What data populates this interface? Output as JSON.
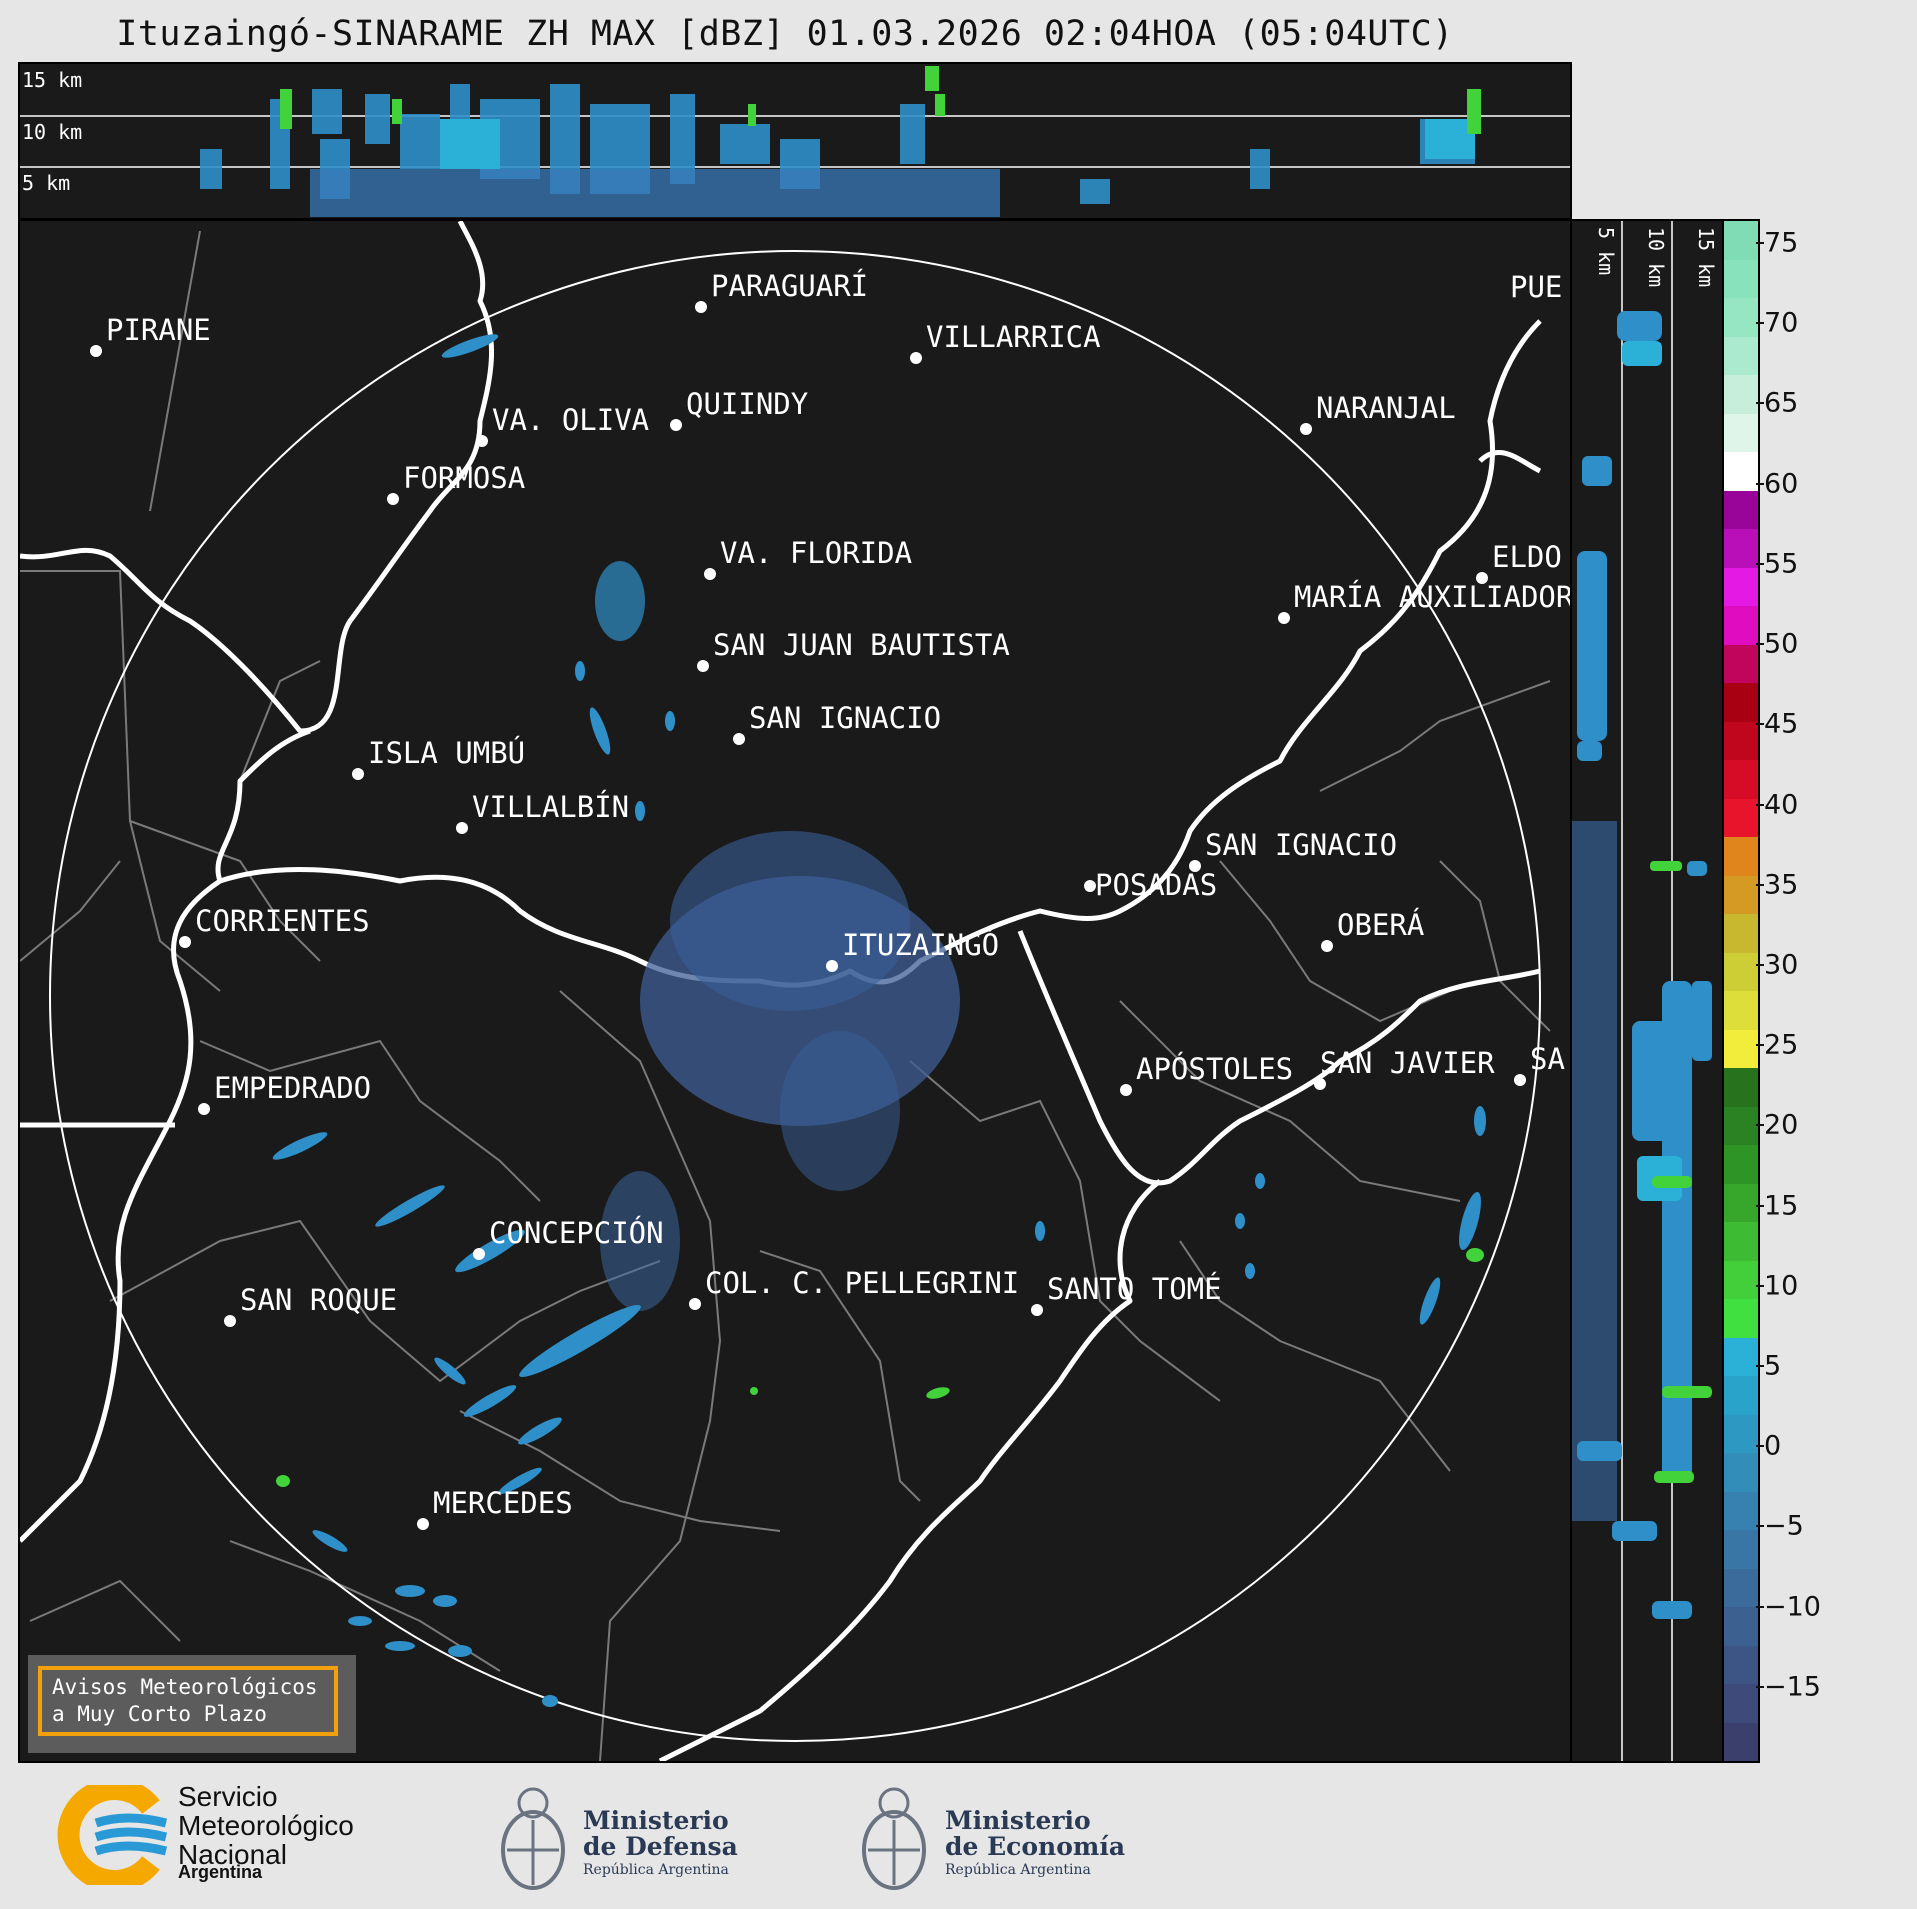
{
  "title": "Ituzaingó-SINARAME ZH MAX [dBZ] 01.03.2026 02:04HOA (05:04UTC)",
  "top_panel": {
    "height_labels": [
      "15 km",
      "10 km",
      "5 km"
    ]
  },
  "side_panel": {
    "height_labels": [
      "5 km",
      "10 km",
      "15 km"
    ]
  },
  "cities": [
    {
      "name": "PIRANE"
    },
    {
      "name": "PARAGUARÍ"
    },
    {
      "name": "VILLARRICA"
    },
    {
      "name": "QUIINDY"
    },
    {
      "name": "VA. OLIVA"
    },
    {
      "name": "NARANJAL"
    },
    {
      "name": "FORMOSA"
    },
    {
      "name": "VA. FLORIDA"
    },
    {
      "name": "ELDO"
    },
    {
      "name": "MARÍA AUXILIADOR"
    },
    {
      "name": "SAN JUAN BAUTISTA"
    },
    {
      "name": "SAN IGNACIO"
    },
    {
      "name": "ISLA UMBÚ"
    },
    {
      "name": "VILLALBÍN"
    },
    {
      "name": "SAN IGNACIO"
    },
    {
      "name": "POSADAS"
    },
    {
      "name": "CORRIENTES"
    },
    {
      "name": "ITUZAINGÓ"
    },
    {
      "name": "OBERÁ"
    },
    {
      "name": "APÓSTOLES"
    },
    {
      "name": "SAN JAVIER"
    },
    {
      "name": "SA"
    },
    {
      "name": "EMPEDRADO"
    },
    {
      "name": "CONCEPCIÓN"
    },
    {
      "name": "COL. C. PELLEGRINI"
    },
    {
      "name": "SANTO TOMÉ"
    },
    {
      "name": "SAN ROQUE"
    },
    {
      "name": "MERCEDES"
    },
    {
      "name": "PUE"
    }
  ],
  "colorbar": {
    "unit": "dBZ",
    "ticks": [
      "75",
      "70",
      "65",
      "60",
      "55",
      "50",
      "45",
      "40",
      "35",
      "30",
      "25",
      "20",
      "15",
      "10",
      "5",
      "0",
      "−5",
      "−10",
      "−15"
    ],
    "colors": [
      "#3b3f6b",
      "#3d4a7a",
      "#3d5585",
      "#3c6090",
      "#3b6b9a",
      "#3976a5",
      "#3681b0",
      "#328db9",
      "#2d98c2",
      "#29a3ca",
      "#2bb0d8",
      "#3fe03f",
      "#42cf3a",
      "#3dbb33",
      "#37a72c",
      "#2f9426",
      "#2a8222",
      "#26721d",
      "#f2ec3a",
      "#dede3a",
      "#cdcd35",
      "#c8b830",
      "#d49a24",
      "#e0851c",
      "#e8142c",
      "#d60b25",
      "#c0061c",
      "#a80012",
      "#c2055c",
      "#e00cc0",
      "#e41ae4",
      "#b80fb8",
      "#9a0599",
      "#ffffff",
      "#dff5ea",
      "#c6eedb",
      "#acead0",
      "#96e6c4",
      "#88e2bc",
      "#7fdcb5"
    ]
  },
  "warning_box": {
    "line1": "Avisos Meteorológicos",
    "line2": "a Muy Corto Plazo"
  },
  "footer": {
    "smn": {
      "line1": "Servicio",
      "line2": "Meteorológico",
      "line3": "Nacional",
      "sub": "Argentina"
    },
    "defensa": {
      "line1": "Ministerio",
      "line2": "de Defensa",
      "sub": "República Argentina"
    },
    "economia": {
      "line1": "Ministerio",
      "line2": "de Economía",
      "sub": "República Argentina"
    }
  }
}
